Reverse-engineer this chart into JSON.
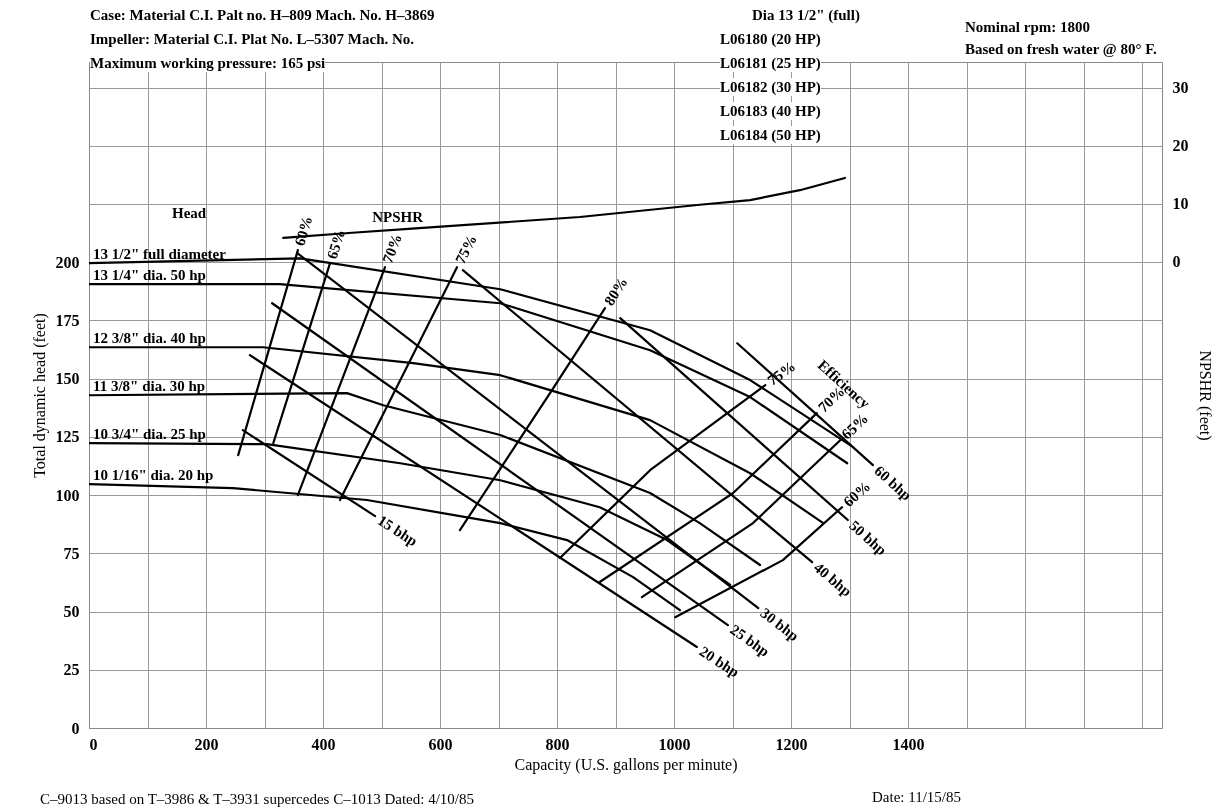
{
  "chart_data": {
    "type": "line",
    "title": "Case: Material C.I.   Palt no. H–809   Mach. No. H–3869",
    "xlabel": "Capacity (U.S. gallons per minute)",
    "ylabel": "Total dynamic head (feet)",
    "y2label": "NPSHR  (feet)",
    "xlim": [
      0,
      1834
    ],
    "ylim": [
      0,
      286
    ],
    "y2lim": [
      -80,
      34.3
    ],
    "xticks": [
      0,
      {
        "value": 100,
        "label": null
      },
      200,
      {
        "value": 300,
        "label": null
      },
      400,
      {
        "value": 500,
        "label": null
      },
      600,
      {
        "value": 700,
        "label": null
      },
      800,
      {
        "value": 900,
        "label": null
      },
      1000,
      {
        "value": 1100,
        "label": null
      },
      1200,
      {
        "value": 1300,
        "label": null
      },
      1400,
      {
        "value": 1500,
        "label": null
      },
      {
        "value": 1600,
        "label": null
      },
      {
        "value": 1700,
        "label": null
      },
      {
        "value": 1800,
        "label": null
      }
    ],
    "yticks": [
      0,
      25,
      50,
      75,
      100,
      125,
      150,
      175,
      200,
      {
        "value": 225,
        "label": null
      },
      {
        "value": 250,
        "label": null
      },
      {
        "value": 275,
        "label": null
      }
    ],
    "y2ticks": [
      0,
      10,
      20,
      30
    ],
    "grid": true,
    "annotations": [
      "Dia 13 1/2\" (full)",
      "Impeller: Material C.I.   Plat No. L–5307   Mach. No.",
      "L06180 (20 HP)",
      "L06181 (25 HP)",
      "L06182 (30 HP)",
      "L06183 (40 HP)",
      "L06184 (50 HP)",
      "Maximum working pressure: 165 psi",
      "Nominal rpm: 1800",
      "Based on fresh water @ 80° F.",
      "C–9013  based on T–3986 & T–3931 supercedes C–1013  Dated: 4/10/85",
      "Date: 11/15/85",
      "Head",
      "Efficiency"
    ],
    "series": [
      {
        "name": "13 1/2\" full diameter",
        "color": "#000000",
        "x": [
          0,
          361,
          703,
          959,
          1130,
          1301
        ],
        "values": [
          199.6,
          201.7,
          188.4,
          170.8,
          149.4,
          121.5
        ]
      },
      {
        "name": "13 1/4\" dia. 50 hp",
        "color": "#000000",
        "x": [
          0,
          326,
          703,
          959,
          1130,
          1296
        ],
        "values": [
          190.6,
          190.6,
          182.4,
          162.2,
          142.1,
          113.7
        ]
      },
      {
        "name": "12 3/8\" dia. 40 hp",
        "color": "#000000",
        "x": [
          0,
          297,
          554,
          703,
          959,
          1130,
          1255
        ],
        "values": [
          163.5,
          163.5,
          156.7,
          151.5,
          132.2,
          109.4,
          88.0
        ]
      },
      {
        "name": "11 3/8\" dia. 30 hp",
        "color": "#000000",
        "x": [
          0,
          441,
          503,
          703,
          959,
          1044,
          1147
        ],
        "values": [
          142.9,
          143.8,
          138.6,
          125.8,
          100.9,
          88.0,
          70.0
        ]
      },
      {
        "name": "10 3/4\" dia. 25 hp",
        "color": "#000000",
        "x": [
          0,
          304,
          532,
          703,
          873,
          988,
          1096
        ],
        "values": [
          122.3,
          121.9,
          113.7,
          106.4,
          94.8,
          80.7,
          61.4
        ]
      },
      {
        "name": "10 1/16\" dia. 20 hp",
        "color": "#000000",
        "x": [
          0,
          246,
          475,
          703,
          817,
          930,
          1010
        ],
        "values": [
          104.7,
          103.0,
          97.9,
          88.0,
          80.7,
          64.8,
          50.6
        ]
      },
      {
        "name": "NPSHR",
        "color": "#000000",
        "axis": "y2",
        "x": [
          332,
          450,
          552,
          839,
          1044,
          1130,
          1215,
          1292
        ],
        "values": [
          4.1,
          5.0,
          5.7,
          7.7,
          9.8,
          10.6,
          12.3,
          14.4
        ]
      },
      {
        "name": "60%",
        "color": "#000000",
        "x": [
          357,
          255
        ],
        "values": [
          205.2,
          117.2
        ]
      },
      {
        "name": "65%",
        "color": "#000000",
        "x": [
          412,
          315
        ],
        "values": [
          199.6,
          122.3
        ]
      },
      {
        "name": "70%",
        "color": "#000000",
        "x": [
          506,
          357
        ],
        "values": [
          197.9,
          100.0
        ]
      },
      {
        "name": "75%",
        "color": "#000000",
        "x": [
          629,
          429
        ],
        "values": [
          197.9,
          97.9
        ]
      },
      {
        "name": "80%",
        "color": "#000000",
        "x": [
          882,
          788,
          634
        ],
        "values": [
          180.3,
          143.8,
          85.0
        ]
      },
      {
        "name": "75%",
        "color": "#000000",
        "x": [
          1156,
          959,
          805
        ],
        "values": [
          147.2,
          110.7,
          73.0
        ]
      },
      {
        "name": "70%",
        "color": "#000000",
        "x": [
          1244,
          1101,
          873
        ],
        "values": [
          135.2,
          100.9,
          62.7
        ]
      },
      {
        "name": "65%",
        "color": "#000000",
        "x": [
          1284,
          1135,
          945
        ],
        "values": [
          123.6,
          88.0,
          56.2
        ]
      },
      {
        "name": "60%",
        "color": "#000000",
        "x": [
          1287,
          1186,
          1002
        ],
        "values": [
          94.8,
          72.1,
          47.6
        ]
      },
      {
        "name": "15 bhp",
        "color": "#000000",
        "x": [
          263,
          489
        ],
        "values": [
          127.9,
          91.0
        ]
      },
      {
        "name": "20 bhp",
        "color": "#000000",
        "x": [
          275,
          1039
        ],
        "values": [
          160.1,
          34.8
        ]
      },
      {
        "name": "25 bhp",
        "color": "#000000",
        "x": [
          313,
          1092
        ],
        "values": [
          182.4,
          44.2
        ]
      },
      {
        "name": "30 bhp",
        "color": "#000000",
        "x": [
          356,
          1144
        ],
        "values": [
          203.9,
          51.5
        ]
      },
      {
        "name": "40 bhp",
        "color": "#000000",
        "x": [
          639,
          1236
        ],
        "values": [
          196.6,
          71.2
        ]
      },
      {
        "name": "50 bhp",
        "color": "#000000",
        "x": [
          908,
          1297
        ],
        "values": [
          176.0,
          89.3
        ]
      },
      {
        "name": "60 bhp",
        "color": "#000000",
        "x": [
          1108,
          1340
        ],
        "values": [
          165.2,
          112.9
        ]
      }
    ]
  }
}
